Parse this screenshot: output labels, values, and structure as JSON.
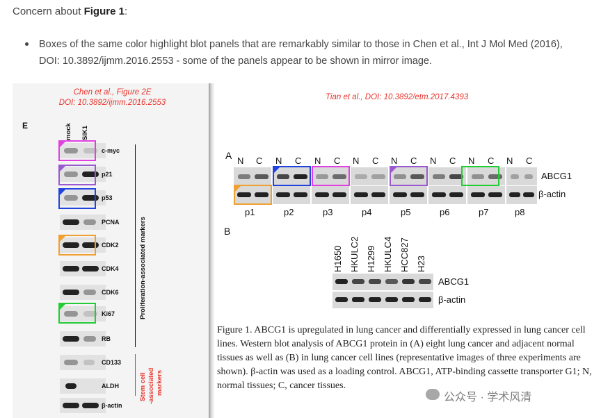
{
  "heading": {
    "prefix": "Concern about ",
    "bold": "Figure 1",
    "suffix": ":"
  },
  "bullet": {
    "text": "Boxes of the same color highlight blot panels that are remarkably similar to those in Chen et al., Int J Mol Med (2016), DOI: 10.3892/ijmm.2016.2553 - some of the panels appear to be shown in mirror image."
  },
  "left_figure": {
    "caption_line1": "Chen et al., Figure 2E",
    "caption_line2": "DOI: 10.3892/ijmm.2016.2553",
    "panel_letter": "E",
    "columns": [
      "mock",
      "SIK1"
    ],
    "rows": [
      "c-myc",
      "p21",
      "p53",
      "PCNA",
      "CDK2",
      "CDK4",
      "CDK6",
      "Ki67",
      "RB",
      "CD133",
      "ALDH",
      "β-actin"
    ],
    "group1_label": "Proliferation-associated markers",
    "group2_label_line1": "Stem cell",
    "group2_label_line2": "-associated",
    "group2_label_line3": "markers"
  },
  "right_figure": {
    "caption": "Tian et al., DOI: 10.3892/etm.2017.4393",
    "panel_a_letter": "A",
    "panel_b_letter": "B",
    "nc_labels": [
      "N",
      "C"
    ],
    "patients": [
      "p1",
      "p2",
      "p3",
      "p4",
      "p5",
      "p6",
      "p7",
      "p8"
    ],
    "label_abcg1": "ABCG1",
    "label_bactin": "β-actin",
    "cell_lines": [
      "H1650",
      "HKULC2",
      "H1299",
      "HKULC4",
      "HCC827",
      "H23"
    ],
    "figure_caption": "Figure 1. ABCG1 is upregulated in lung cancer and differentially expressed in lung cancer cell lines. Western blot analysis of ABCG1 protein in (A) eight lung cancer and adjacent normal tissues as well as (B) in lung cancer cell lines (representative images of three experiments are shown). β-actin was used as a loading control. ABCG1, ATP-binding cassette transporter G1; N, normal tissues; C, cancer tissues."
  },
  "watermark": {
    "text": "公众号 · 学术风清"
  },
  "colors": {
    "magenta": "#e040e0",
    "purple": "#9b59d0",
    "blue": "#2244dd",
    "orange": "#f0a030",
    "green": "#22cc33",
    "red_caption": "#e8352d"
  }
}
